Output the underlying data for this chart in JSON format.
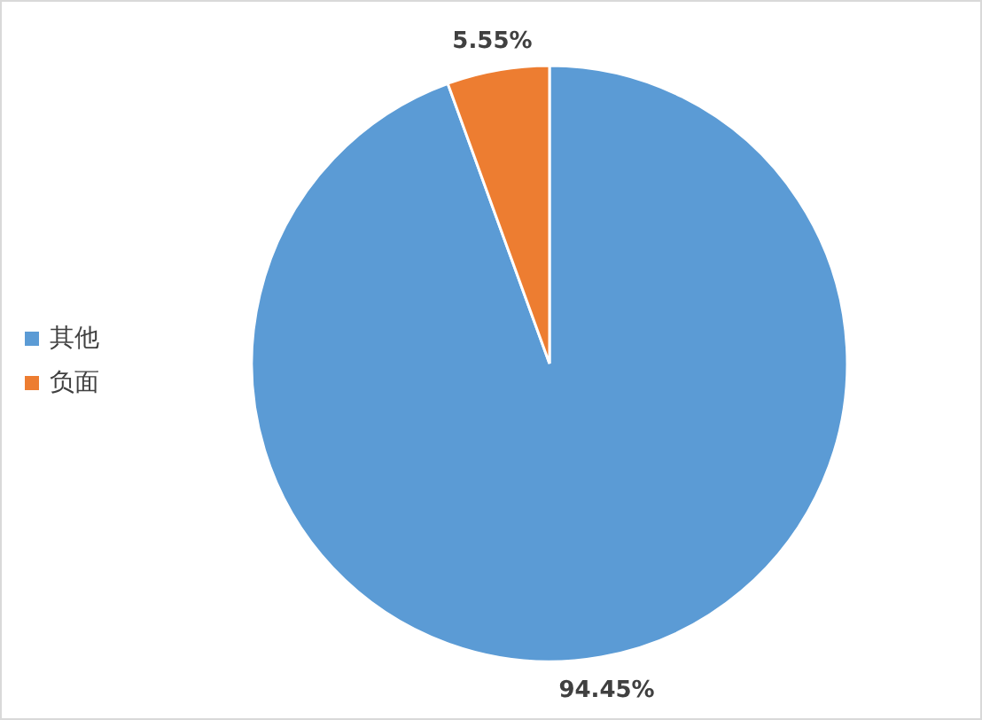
{
  "chart_data": {
    "type": "pie",
    "categories": [
      "其他",
      "负面"
    ],
    "values": [
      94.45,
      5.55
    ],
    "value_labels": [
      "94.45%",
      "5.55%"
    ],
    "colors": [
      "#5b9bd5",
      "#ed7d31"
    ],
    "legend": "left"
  }
}
